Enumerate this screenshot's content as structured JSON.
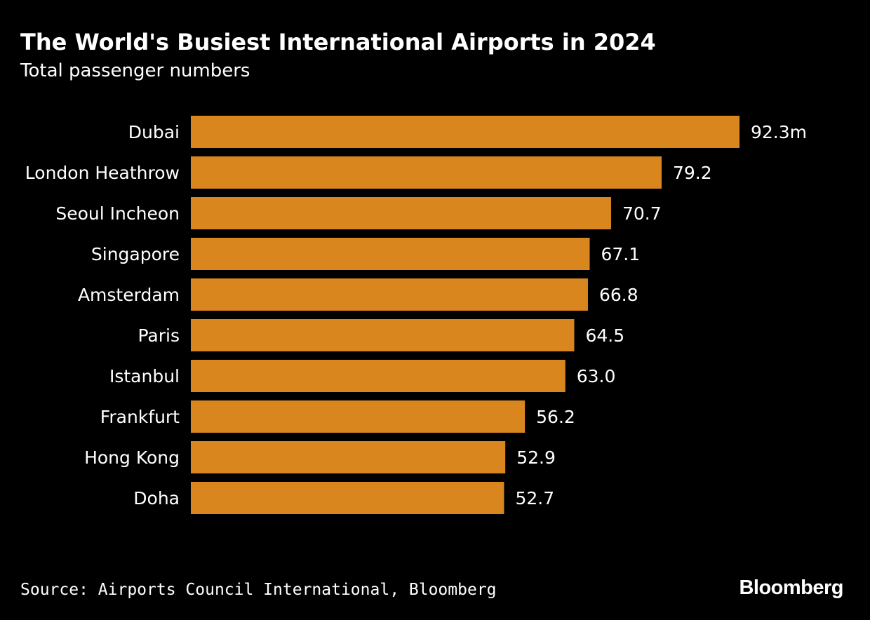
{
  "title": "The World's Busiest International Airports in 2024",
  "subtitle": "Total passenger numbers",
  "source": "Source: Airports Council International, Bloomberg",
  "brand": "Bloomberg",
  "colors": {
    "background": "#000000",
    "bar": "#d9861f",
    "text": "#ffffff"
  },
  "chart_data": {
    "type": "bar",
    "orientation": "horizontal",
    "title": "The World's Busiest International Airports in 2024",
    "subtitle": "Total passenger numbers",
    "categories": [
      "Dubai",
      "London Heathrow",
      "Seoul Incheon",
      "Singapore",
      "Amsterdam",
      "Paris",
      "Istanbul",
      "Frankfurt",
      "Hong Kong",
      "Doha"
    ],
    "values": [
      92.3,
      79.2,
      70.7,
      67.1,
      66.8,
      64.5,
      63.0,
      56.2,
      52.9,
      52.7
    ],
    "value_labels": [
      "92.3m",
      "79.2",
      "70.7",
      "67.1",
      "66.8",
      "64.5",
      "63.0",
      "56.2",
      "52.9",
      "52.7"
    ],
    "unit": "m",
    "xlim": [
      0,
      92.3
    ],
    "grid": false,
    "legend": "none"
  }
}
